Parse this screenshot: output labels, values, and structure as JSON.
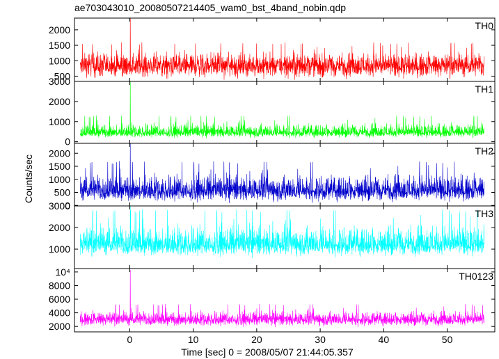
{
  "chart_data": {
    "type": "line",
    "title": "ae703043010_20080507214405_wam0_bst_4band_nobin.qdp",
    "xlabel": "Time [sec] 0 = 2008/05/07 21:44:05.357",
    "ylabel": "Counts/sec",
    "xlim": [
      -8.7,
      57.5
    ],
    "x_ticks": [
      0,
      10,
      20,
      30,
      40,
      50
    ],
    "x_tick_labels": [
      "0",
      "10",
      "20",
      "30",
      "40",
      "50"
    ],
    "data_x_range": [
      -7.8,
      55.8
    ],
    "burst_time": 0.1,
    "grid": false,
    "legend": "none",
    "series": [
      {
        "name": "TH0",
        "color": "#ff0000",
        "ylim": [
          330,
          2380
        ],
        "y_ticks": [
          500,
          1000,
          1500,
          2000
        ],
        "y_tick_labels": [
          "500",
          "1000",
          "1500",
          "2000"
        ],
        "baseline": 830,
        "noise_range": [
          330,
          1600
        ],
        "spike_peak": 2380
      },
      {
        "name": "TH1",
        "color": "#00ff00",
        "ylim": [
          -80,
          3000
        ],
        "y_ticks": [
          0,
          1000,
          2000,
          3000
        ],
        "y_tick_labels": [
          "0",
          "1000",
          "2000",
          "3000"
        ],
        "baseline": 450,
        "noise_range": [
          150,
          1300
        ],
        "spike_peak": 3000
      },
      {
        "name": "TH2",
        "color": "#0000cc",
        "ylim": [
          -20,
          2380
        ],
        "y_ticks": [
          0,
          500,
          1000,
          1500,
          2000
        ],
        "y_tick_labels": [
          "0",
          "500",
          "1000",
          "1500",
          "2000"
        ],
        "baseline": 560,
        "noise_range": [
          50,
          1700
        ],
        "spike_peak": 2380
      },
      {
        "name": "TH3",
        "color": "#00ffff",
        "ylim": [
          100,
          3000
        ],
        "y_ticks": [
          1000,
          2000,
          3000
        ],
        "y_tick_labels": [
          "1000",
          "2000",
          "3000"
        ],
        "baseline": 1200,
        "noise_range": [
          550,
          2850
        ],
        "spike_peak": 3000
      },
      {
        "name": "TH0123",
        "color": "#ff00ff",
        "ylim": [
          1200,
          10500
        ],
        "y_ticks": [
          2000,
          4000,
          6000,
          8000,
          10000
        ],
        "y_tick_labels": [
          "2000",
          "4000",
          "6000",
          "8000",
          "10⁴"
        ],
        "baseline": 3000,
        "noise_range": [
          1800,
          5300
        ],
        "spike_peak": 10300
      }
    ]
  }
}
